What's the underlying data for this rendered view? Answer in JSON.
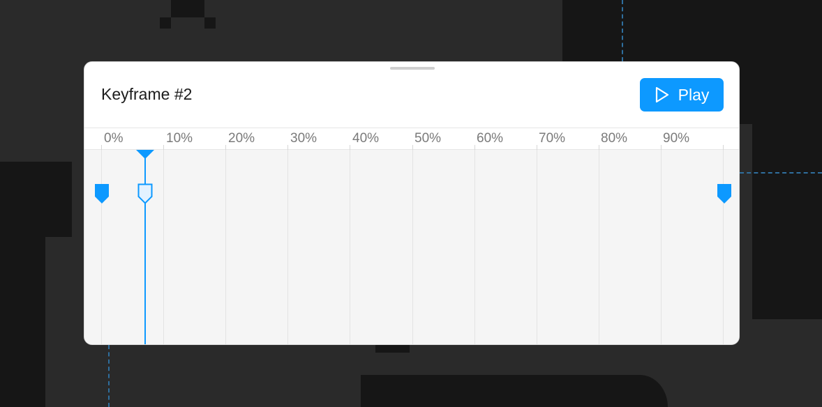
{
  "panel": {
    "title": "Keyframe #2",
    "play_label": "Play",
    "accent_color": "#0d99ff"
  },
  "ruler": {
    "ticks": [
      "0%",
      "10%",
      "20%",
      "30%",
      "40%",
      "50%",
      "60%",
      "70%",
      "80%",
      "90%"
    ]
  },
  "timeline": {
    "playhead_percent": 7,
    "keyframes": [
      {
        "name": "keyframe-1",
        "percent": 0,
        "selected": false
      },
      {
        "name": "keyframe-2",
        "percent": 7,
        "selected": true
      },
      {
        "name": "keyframe-3",
        "percent": 100,
        "selected": false
      }
    ]
  },
  "icons": {
    "play": "play-icon",
    "drag_handle": "drag-handle"
  }
}
